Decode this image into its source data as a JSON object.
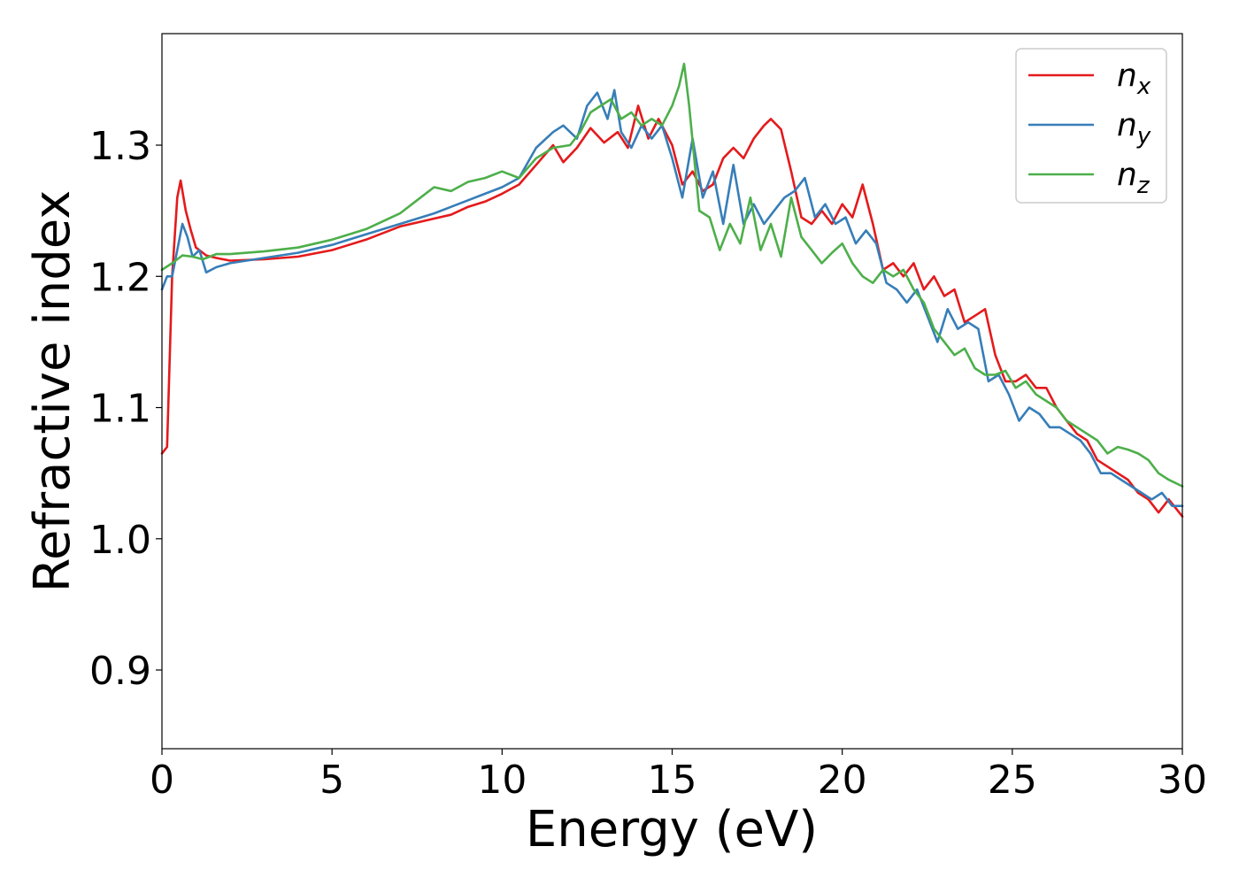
{
  "chart_data": {
    "type": "line",
    "title": "",
    "xlabel": "Energy (eV)",
    "ylabel": "Refractive index",
    "xlim": [
      0,
      30
    ],
    "ylim": [
      0.84,
      1.385
    ],
    "xticks": [
      0,
      5,
      10,
      15,
      20,
      25,
      30
    ],
    "xtick_labels": [
      "0",
      "5",
      "10",
      "15",
      "20",
      "25",
      "30"
    ],
    "yticks": [
      0.9,
      1.0,
      1.1,
      1.2,
      1.3
    ],
    "ytick_labels": [
      "0.9",
      "1.0",
      "1.1",
      "1.2",
      "1.3"
    ],
    "grid": false,
    "legend_position": "top-right",
    "series": [
      {
        "name": "n",
        "subscript": "x",
        "color": "#e41a1c",
        "x": [
          0,
          0.15,
          0.3,
          0.45,
          0.55,
          0.7,
          0.85,
          1.0,
          1.3,
          1.6,
          2,
          3,
          4,
          5,
          6,
          7,
          8,
          8.5,
          9,
          9.5,
          10,
          10.5,
          11,
          11.5,
          11.8,
          12.2,
          12.6,
          13,
          13.4,
          13.7,
          14,
          14.3,
          14.6,
          15,
          15.3,
          15.6,
          15.9,
          16.2,
          16.5,
          16.8,
          17.1,
          17.4,
          17.7,
          17.9,
          18.2,
          18.5,
          18.8,
          19.1,
          19.4,
          19.7,
          20,
          20.3,
          20.6,
          20.9,
          21.2,
          21.5,
          21.8,
          22.1,
          22.4,
          22.7,
          23,
          23.3,
          23.6,
          23.9,
          24.2,
          24.5,
          24.8,
          25.1,
          25.4,
          25.7,
          26,
          26.3,
          26.6,
          26.9,
          27.2,
          27.5,
          27.8,
          28.1,
          28.4,
          28.7,
          29,
          29.3,
          29.6,
          30
        ],
        "values": [
          1.065,
          1.07,
          1.2,
          1.26,
          1.273,
          1.25,
          1.235,
          1.222,
          1.216,
          1.214,
          1.212,
          1.213,
          1.215,
          1.22,
          1.228,
          1.238,
          1.244,
          1.247,
          1.253,
          1.257,
          1.263,
          1.27,
          1.285,
          1.3,
          1.287,
          1.298,
          1.313,
          1.302,
          1.31,
          1.298,
          1.33,
          1.305,
          1.32,
          1.3,
          1.27,
          1.28,
          1.265,
          1.27,
          1.29,
          1.298,
          1.29,
          1.305,
          1.315,
          1.32,
          1.312,
          1.28,
          1.245,
          1.24,
          1.25,
          1.24,
          1.255,
          1.245,
          1.27,
          1.24,
          1.205,
          1.21,
          1.2,
          1.21,
          1.19,
          1.2,
          1.185,
          1.19,
          1.165,
          1.17,
          1.175,
          1.14,
          1.12,
          1.12,
          1.125,
          1.115,
          1.115,
          1.1,
          1.09,
          1.08,
          1.075,
          1.06,
          1.055,
          1.05,
          1.045,
          1.035,
          1.03,
          1.02,
          1.03,
          1.017
        ]
      },
      {
        "name": "n",
        "subscript": "y",
        "color": "#377eb8",
        "x": [
          0,
          0.15,
          0.3,
          0.45,
          0.6,
          0.75,
          0.9,
          1.1,
          1.3,
          1.6,
          2,
          3,
          4,
          5,
          6,
          7,
          8,
          8.5,
          9,
          9.5,
          10,
          10.5,
          11,
          11.5,
          11.8,
          12.2,
          12.5,
          12.8,
          13.1,
          13.3,
          13.5,
          13.8,
          14.1,
          14.4,
          14.7,
          15,
          15.3,
          15.6,
          15.9,
          16.2,
          16.5,
          16.8,
          17.1,
          17.4,
          17.7,
          18,
          18.3,
          18.6,
          18.9,
          19.2,
          19.5,
          19.8,
          20.1,
          20.4,
          20.7,
          21,
          21.3,
          21.6,
          21.9,
          22.2,
          22.5,
          22.8,
          23.1,
          23.4,
          23.7,
          24,
          24.3,
          24.6,
          24.9,
          25.2,
          25.5,
          25.8,
          26.1,
          26.4,
          26.7,
          27,
          27.3,
          27.6,
          27.9,
          28.2,
          28.5,
          28.8,
          29.1,
          29.4,
          29.7,
          30
        ],
        "values": [
          1.19,
          1.2,
          1.2,
          1.22,
          1.24,
          1.23,
          1.215,
          1.22,
          1.203,
          1.207,
          1.21,
          1.214,
          1.218,
          1.224,
          1.232,
          1.24,
          1.248,
          1.253,
          1.258,
          1.263,
          1.268,
          1.275,
          1.298,
          1.31,
          1.315,
          1.305,
          1.33,
          1.34,
          1.32,
          1.342,
          1.31,
          1.298,
          1.315,
          1.305,
          1.315,
          1.29,
          1.26,
          1.305,
          1.26,
          1.28,
          1.24,
          1.285,
          1.24,
          1.255,
          1.24,
          1.25,
          1.26,
          1.265,
          1.275,
          1.245,
          1.255,
          1.24,
          1.245,
          1.225,
          1.235,
          1.225,
          1.195,
          1.19,
          1.18,
          1.19,
          1.17,
          1.15,
          1.175,
          1.16,
          1.165,
          1.16,
          1.12,
          1.125,
          1.11,
          1.09,
          1.1,
          1.095,
          1.085,
          1.085,
          1.08,
          1.075,
          1.065,
          1.05,
          1.05,
          1.045,
          1.04,
          1.035,
          1.03,
          1.035,
          1.025,
          1.025
        ]
      },
      {
        "name": "n",
        "subscript": "z",
        "color": "#4daf4a",
        "x": [
          0,
          0.3,
          0.6,
          0.9,
          1.2,
          1.6,
          2,
          3,
          4,
          5,
          6,
          7,
          7.6,
          8,
          8.5,
          9,
          9.5,
          10,
          10.5,
          11,
          11.5,
          12,
          12.3,
          12.6,
          12.9,
          13.2,
          13.5,
          13.8,
          14.1,
          14.4,
          14.7,
          15,
          15.2,
          15.35,
          15.5,
          15.8,
          16.1,
          16.4,
          16.7,
          17,
          17.3,
          17.6,
          17.9,
          18.2,
          18.5,
          18.8,
          19.1,
          19.4,
          19.7,
          20,
          20.3,
          20.6,
          20.9,
          21.2,
          21.5,
          21.8,
          22.1,
          22.4,
          22.7,
          23,
          23.3,
          23.6,
          23.9,
          24.2,
          24.5,
          24.8,
          25.1,
          25.4,
          25.7,
          26,
          26.3,
          26.6,
          26.9,
          27.2,
          27.5,
          27.8,
          28.1,
          28.4,
          28.7,
          29,
          29.3,
          29.6,
          30
        ],
        "values": [
          1.205,
          1.21,
          1.216,
          1.215,
          1.213,
          1.217,
          1.217,
          1.219,
          1.222,
          1.228,
          1.236,
          1.248,
          1.26,
          1.268,
          1.265,
          1.272,
          1.275,
          1.28,
          1.275,
          1.29,
          1.298,
          1.3,
          1.31,
          1.325,
          1.33,
          1.335,
          1.32,
          1.325,
          1.315,
          1.32,
          1.315,
          1.33,
          1.345,
          1.362,
          1.33,
          1.25,
          1.245,
          1.22,
          1.24,
          1.225,
          1.26,
          1.22,
          1.24,
          1.215,
          1.26,
          1.23,
          1.22,
          1.21,
          1.218,
          1.225,
          1.21,
          1.2,
          1.195,
          1.205,
          1.2,
          1.205,
          1.19,
          1.18,
          1.16,
          1.15,
          1.14,
          1.145,
          1.13,
          1.125,
          1.125,
          1.128,
          1.115,
          1.12,
          1.11,
          1.105,
          1.1,
          1.09,
          1.085,
          1.08,
          1.075,
          1.065,
          1.07,
          1.068,
          1.065,
          1.06,
          1.05,
          1.045,
          1.04
        ]
      }
    ]
  }
}
